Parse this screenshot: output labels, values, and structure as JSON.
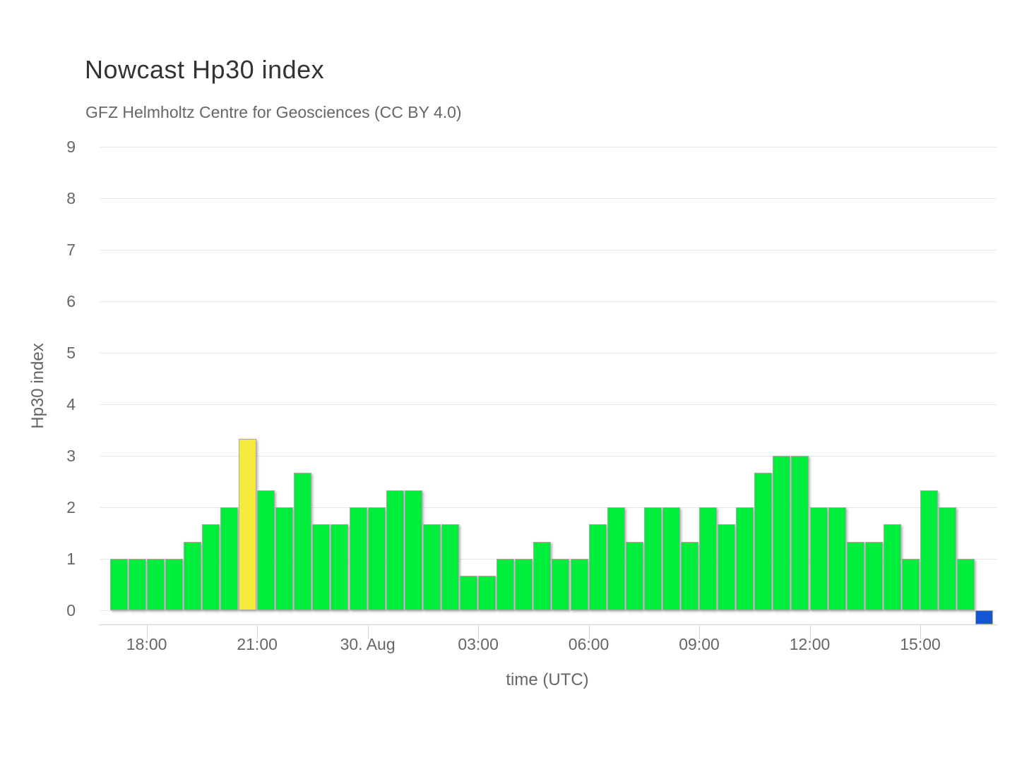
{
  "chart_data": {
    "type": "bar",
    "title": "Nowcast Hp30 index",
    "subtitle": "GFZ Helmholtz Centre for Geosciences (CC BY 4.0)",
    "xlabel": "time (UTC)",
    "ylabel": "Hp30 index",
    "ylim": [
      0,
      9
    ],
    "grid": true,
    "legend": false,
    "bar_interval_minutes": 30,
    "y_ticks": [
      "0",
      "1",
      "2",
      "3",
      "4",
      "5",
      "6",
      "7",
      "8",
      "9"
    ],
    "x_ticks": [
      {
        "label": "18:00",
        "boundary": 2
      },
      {
        "label": "21:00",
        "boundary": 8
      },
      {
        "label": "30. Aug",
        "boundary": 14
      },
      {
        "label": "03:00",
        "boundary": 20
      },
      {
        "label": "06:00",
        "boundary": 26
      },
      {
        "label": "09:00",
        "boundary": 32
      },
      {
        "label": "12:00",
        "boundary": 38
      },
      {
        "label": "15:00",
        "boundary": 44
      }
    ],
    "palette": {
      "green": "#00ed3c",
      "yellow": "#f5eb3c",
      "blue": "#1355d4",
      "gridline": "#e6e6e6",
      "axis_line": "#ccd6eb",
      "title_text": "#333333",
      "label_text": "#666666"
    },
    "bars": [
      {
        "time": "17:00",
        "value": 1.0,
        "color": "green"
      },
      {
        "time": "17:30",
        "value": 1.0,
        "color": "green"
      },
      {
        "time": "18:00",
        "value": 1.0,
        "color": "green"
      },
      {
        "time": "18:30",
        "value": 1.0,
        "color": "green"
      },
      {
        "time": "19:00",
        "value": 1.33,
        "color": "green"
      },
      {
        "time": "19:30",
        "value": 1.67,
        "color": "green"
      },
      {
        "time": "20:00",
        "value": 2.0,
        "color": "green"
      },
      {
        "time": "20:30",
        "value": 3.33,
        "color": "yellow"
      },
      {
        "time": "21:00",
        "value": 2.33,
        "color": "green"
      },
      {
        "time": "21:30",
        "value": 2.0,
        "color": "green"
      },
      {
        "time": "22:00",
        "value": 2.67,
        "color": "green"
      },
      {
        "time": "22:30",
        "value": 1.67,
        "color": "green"
      },
      {
        "time": "23:00",
        "value": 1.67,
        "color": "green"
      },
      {
        "time": "23:30",
        "value": 2.0,
        "color": "green"
      },
      {
        "time": "00:00",
        "value": 2.0,
        "color": "green"
      },
      {
        "time": "00:30",
        "value": 2.33,
        "color": "green"
      },
      {
        "time": "01:00",
        "value": 2.33,
        "color": "green"
      },
      {
        "time": "01:30",
        "value": 1.67,
        "color": "green"
      },
      {
        "time": "02:00",
        "value": 1.67,
        "color": "green"
      },
      {
        "time": "02:30",
        "value": 0.67,
        "color": "green"
      },
      {
        "time": "03:00",
        "value": 0.67,
        "color": "green"
      },
      {
        "time": "03:30",
        "value": 1.0,
        "color": "green"
      },
      {
        "time": "04:00",
        "value": 1.0,
        "color": "green"
      },
      {
        "time": "04:30",
        "value": 1.33,
        "color": "green"
      },
      {
        "time": "05:00",
        "value": 1.0,
        "color": "green"
      },
      {
        "time": "05:30",
        "value": 1.0,
        "color": "green"
      },
      {
        "time": "06:00",
        "value": 1.67,
        "color": "green"
      },
      {
        "time": "06:30",
        "value": 2.0,
        "color": "green"
      },
      {
        "time": "07:00",
        "value": 1.33,
        "color": "green"
      },
      {
        "time": "07:30",
        "value": 2.0,
        "color": "green"
      },
      {
        "time": "08:00",
        "value": 2.0,
        "color": "green"
      },
      {
        "time": "08:30",
        "value": 1.33,
        "color": "green"
      },
      {
        "time": "09:00",
        "value": 2.0,
        "color": "green"
      },
      {
        "time": "09:30",
        "value": 1.67,
        "color": "green"
      },
      {
        "time": "10:00",
        "value": 2.0,
        "color": "green"
      },
      {
        "time": "10:30",
        "value": 2.67,
        "color": "green"
      },
      {
        "time": "11:00",
        "value": 3.0,
        "color": "green"
      },
      {
        "time": "11:30",
        "value": 3.0,
        "color": "green"
      },
      {
        "time": "12:00",
        "value": 2.0,
        "color": "green"
      },
      {
        "time": "12:30",
        "value": 2.0,
        "color": "green"
      },
      {
        "time": "13:00",
        "value": 1.33,
        "color": "green"
      },
      {
        "time": "13:30",
        "value": 1.33,
        "color": "green"
      },
      {
        "time": "14:00",
        "value": 1.67,
        "color": "green"
      },
      {
        "time": "14:30",
        "value": 1.0,
        "color": "green"
      },
      {
        "time": "15:00",
        "value": 2.33,
        "color": "green"
      },
      {
        "time": "15:30",
        "value": 2.0,
        "color": "green"
      },
      {
        "time": "16:00",
        "value": 1.0,
        "color": "green"
      },
      {
        "time": "16:30",
        "value": 0.0,
        "color": "blue"
      }
    ]
  }
}
